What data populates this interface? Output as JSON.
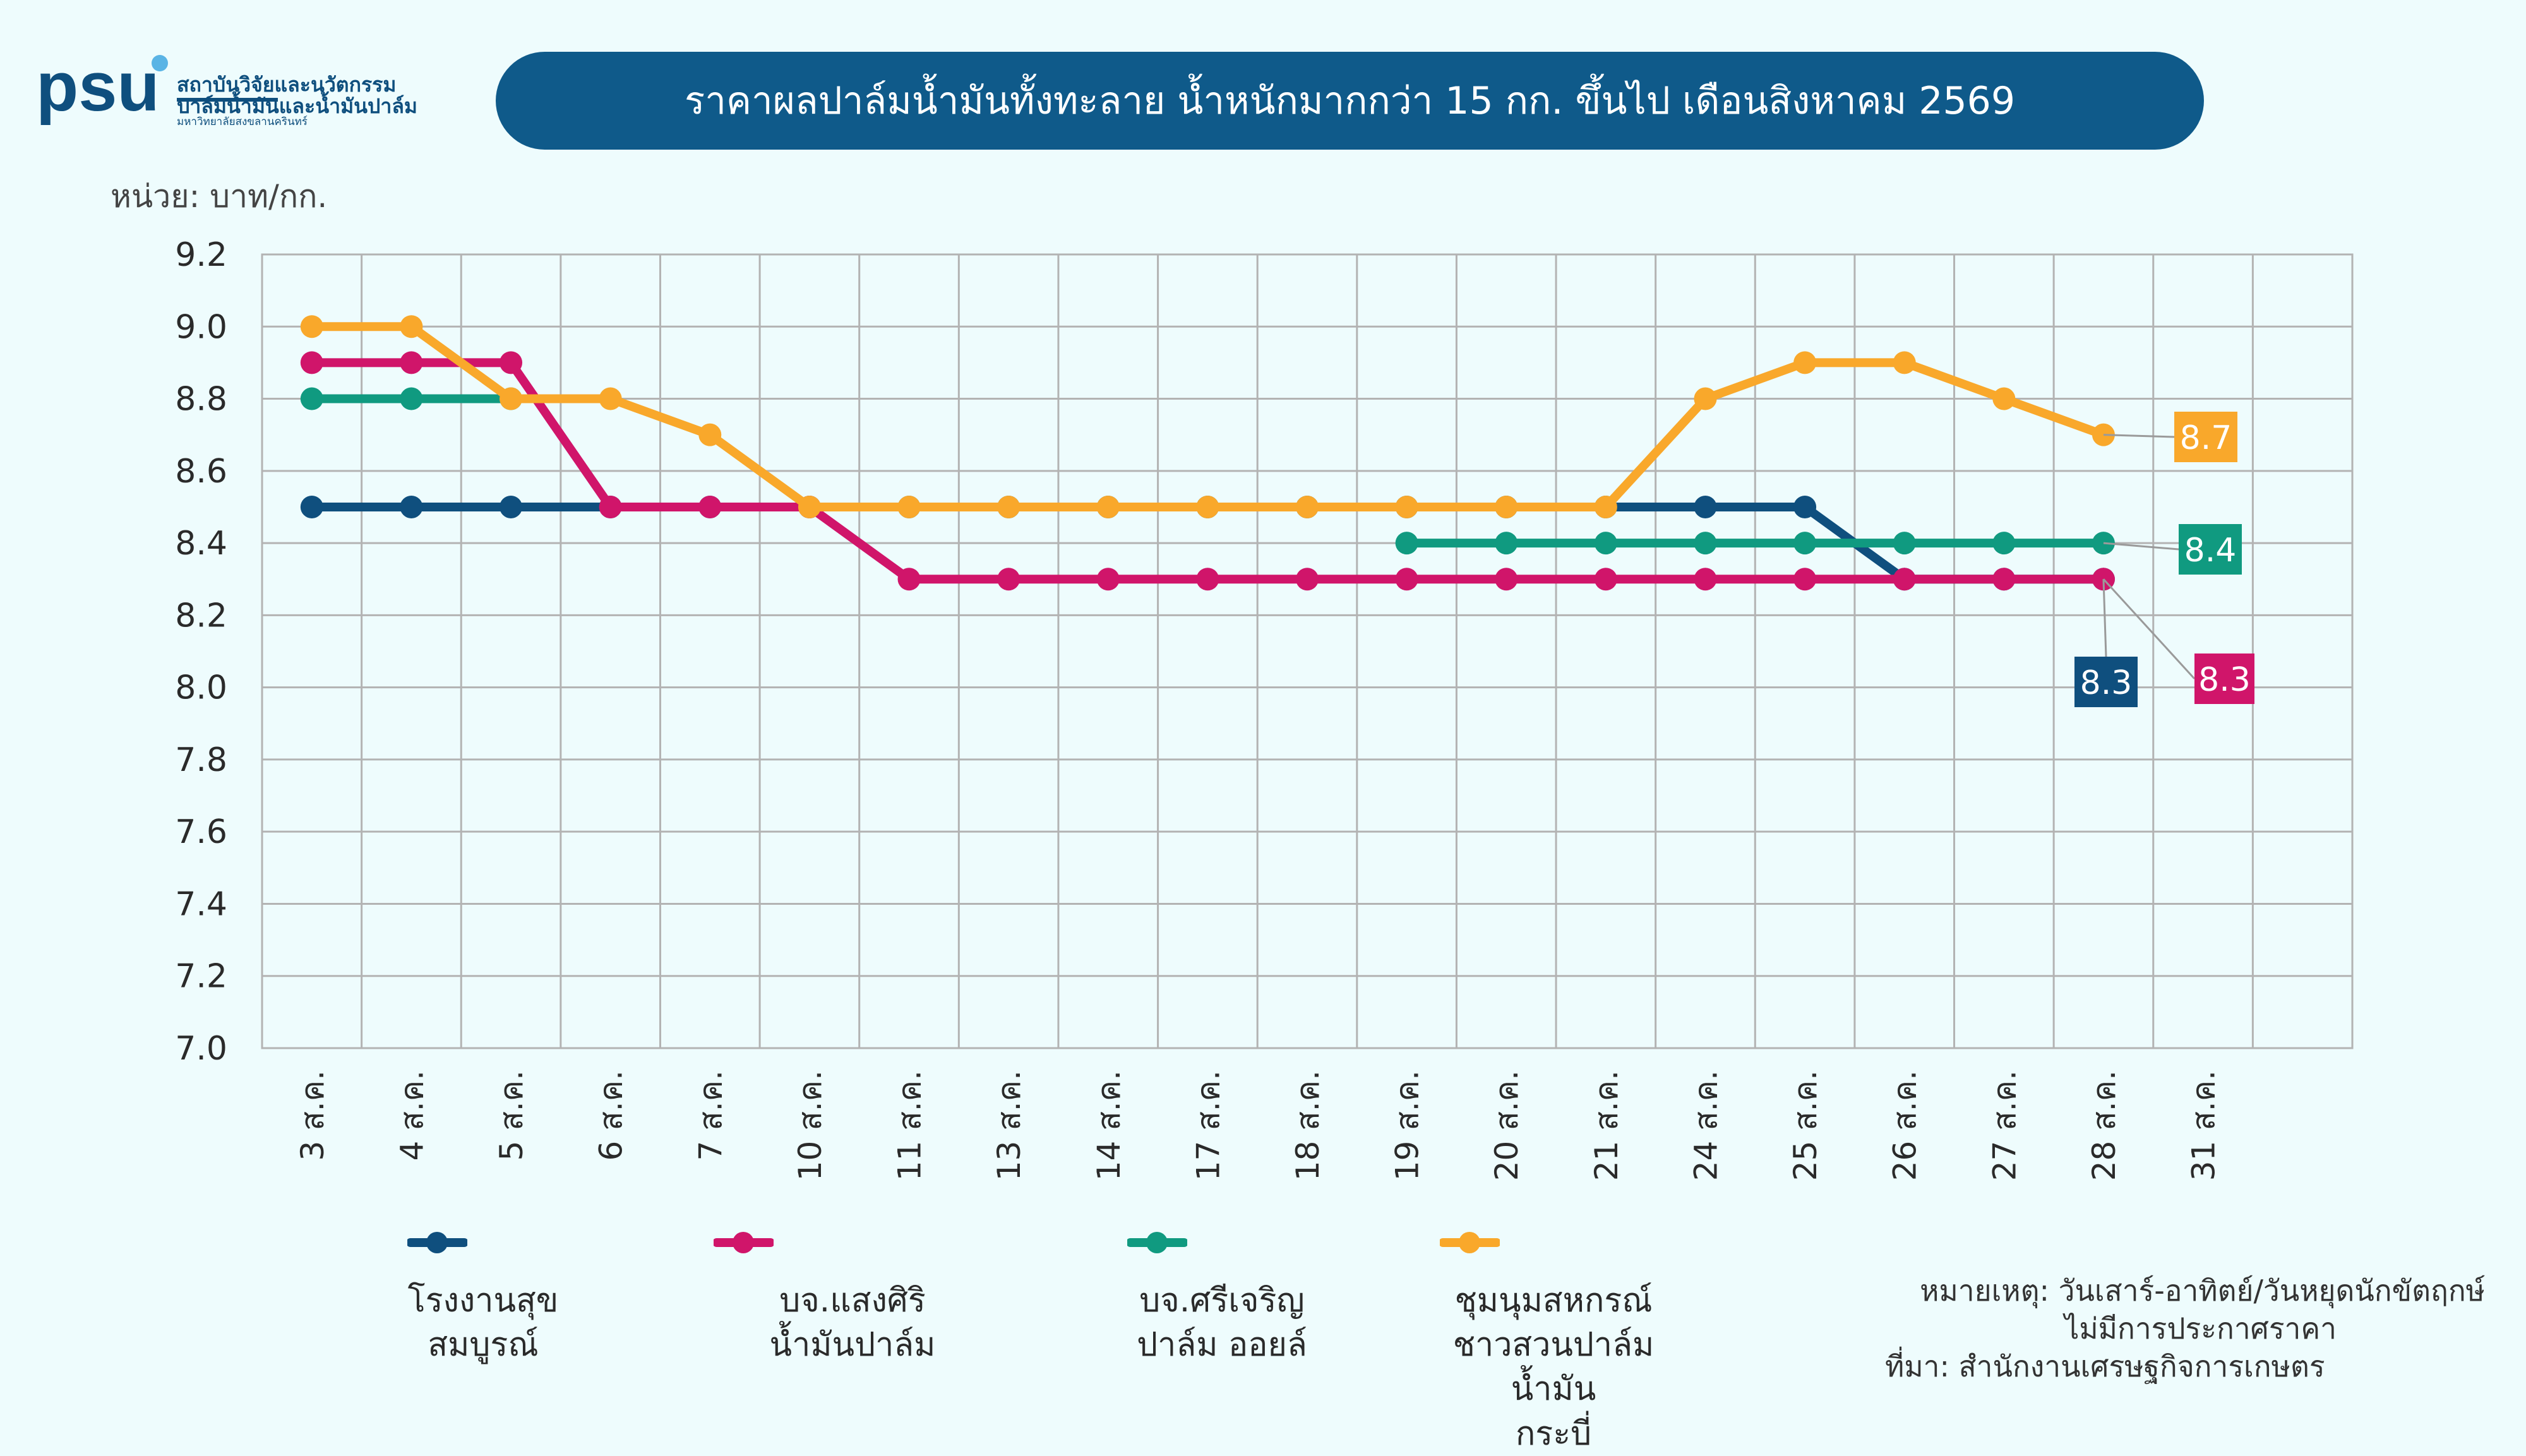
{
  "header": {
    "logo_text": "psu",
    "logo_line1": "สถาบันวิจัยและนวัตกรรม",
    "logo_line2": "ปาล์มน้ำมันและน้ำมันปาล์ม",
    "logo_line3": "มหาวิทยาลัยสงขลานครินทร์",
    "title": "ราคาผลปาล์มน้ำมันทั้งทะลาย น้ำหนักมากกว่า 15 กก. ขึ้นไป เดือนสิงหาคม 2569",
    "unit": "หน่วย: บาท/กก."
  },
  "colors": {
    "background": "#eefcfd",
    "title_bg": "#0f5a8a",
    "grid": "#b3b3b3"
  },
  "notes": {
    "line1": "หมายเหตุ: วันเสาร์-อาทิตย์/วันหยุดนักขัตฤกษ์",
    "line2": "ไม่มีการประกาศราคา",
    "line3": "ที่มา: สำนักงานเศรษฐกิจการเกษตร"
  },
  "chart_data": {
    "type": "line",
    "categories": [
      "3 ส.ค.",
      "4 ส.ค.",
      "5 ส.ค.",
      "6 ส.ค.",
      "7 ส.ค.",
      "10 ส.ค.",
      "11 ส.ค.",
      "13 ส.ค.",
      "14 ส.ค.",
      "17 ส.ค.",
      "18 ส.ค.",
      "19 ส.ค.",
      "20 ส.ค.",
      "21 ส.ค.",
      "24 ส.ค.",
      "25 ส.ค.",
      "26 ส.ค.",
      "27 ส.ค.",
      "28 ส.ค.",
      "31 ส.ค."
    ],
    "ylim": [
      7.0,
      9.2
    ],
    "yticks": [
      9.2,
      9.0,
      8.8,
      8.6,
      8.4,
      8.2,
      8.0,
      7.8,
      7.6,
      7.4,
      7.2,
      7.0
    ],
    "grid": true,
    "legend_position": "bottom",
    "series": [
      {
        "name": "โรงงานสุข สมบูรณ์",
        "legend_lines": [
          "โรงงานสุข",
          "สมบูรณ์"
        ],
        "color": "#0f4f7e",
        "values": [
          8.5,
          8.5,
          8.5,
          8.5,
          8.5,
          8.5,
          8.5,
          8.5,
          8.5,
          8.5,
          8.5,
          8.5,
          8.5,
          8.5,
          8.5,
          8.5,
          8.3,
          8.3,
          8.3,
          null
        ],
        "end_label": "8.3"
      },
      {
        "name": "บจ.แสงศิริ น้ำมันปาล์ม",
        "legend_lines": [
          "บจ.แสงศิริ",
          "น้ำมันปาล์ม"
        ],
        "color": "#d0156a",
        "values": [
          8.9,
          8.9,
          8.9,
          8.5,
          8.5,
          8.5,
          8.3,
          8.3,
          8.3,
          8.3,
          8.3,
          8.3,
          8.3,
          8.3,
          8.3,
          8.3,
          8.3,
          8.3,
          8.3,
          null
        ],
        "end_label": "8.3"
      },
      {
        "name": "บจ.ศรีเจริญ ปาล์ม ออยล์",
        "legend_lines": [
          "บจ.ศรีเจริญ",
          "ปาล์ม ออยล์"
        ],
        "color": "#109a80",
        "values": [
          8.8,
          8.8,
          8.8,
          null,
          null,
          null,
          null,
          null,
          null,
          null,
          null,
          8.4,
          8.4,
          8.4,
          8.4,
          8.4,
          8.4,
          8.4,
          8.4,
          null
        ],
        "end_label": "8.4"
      },
      {
        "name": "ชุมนุมสหกรณ์ ชาวสวนปาล์มน้ำมัน กระบี่",
        "legend_lines": [
          "ชุมนุมสหกรณ์",
          "ชาวสวนปาล์มน้ำมัน",
          "กระบี่"
        ],
        "color": "#f9a82b",
        "values": [
          9.0,
          9.0,
          8.8,
          8.8,
          8.7,
          8.5,
          8.5,
          8.5,
          8.5,
          8.5,
          8.5,
          8.5,
          8.5,
          8.5,
          8.8,
          8.9,
          8.9,
          8.8,
          8.7,
          null
        ],
        "end_label": "8.7"
      }
    ]
  }
}
